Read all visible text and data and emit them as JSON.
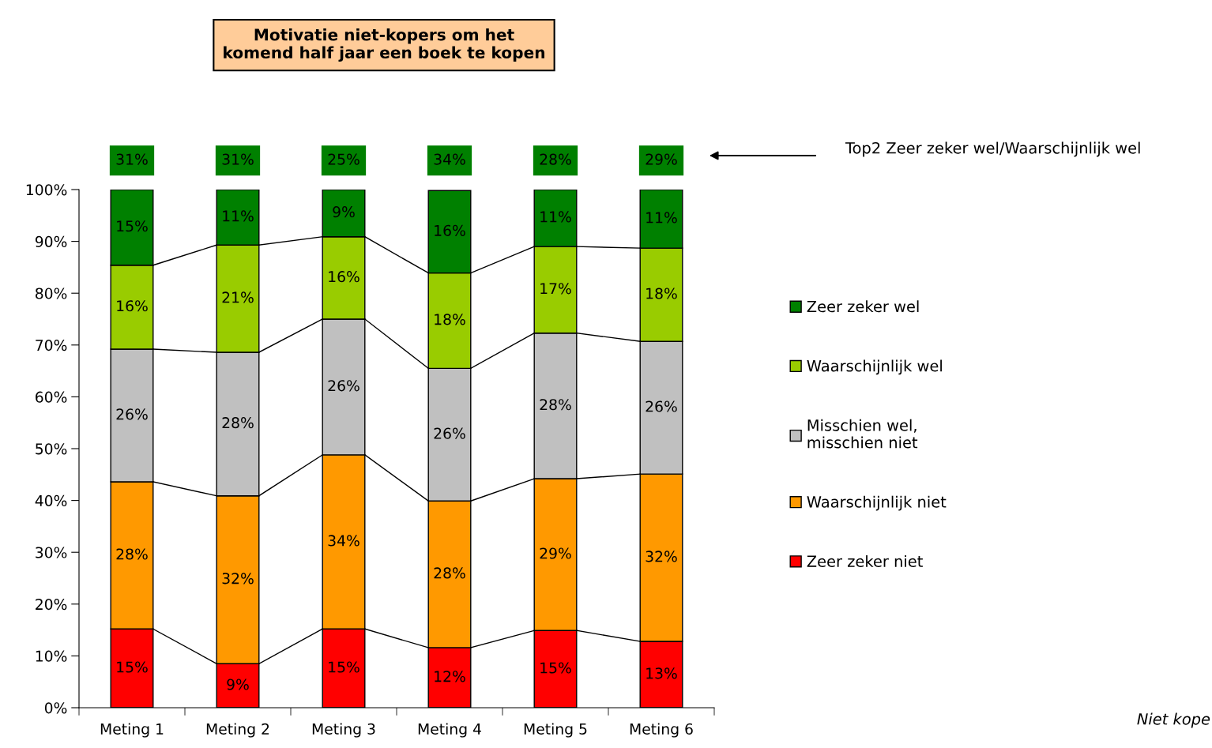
{
  "chart_data": {
    "type": "bar",
    "stacked": true,
    "title": "Motivatie niet-kopers om het\nkomend half jaar een boek te kopen",
    "categories": [
      "Meting 1",
      "Meting 2",
      "Meting 3",
      "Meting 4",
      "Meting 5",
      "Meting 6"
    ],
    "series": [
      {
        "name": "Zeer zeker niet",
        "color": "#ff0000",
        "values": [
          15.2,
          8.5,
          15.2,
          11.6,
          14.9,
          12.8
        ],
        "value_labels": [
          "15%",
          "9%",
          "15%",
          "12%",
          "15%",
          "13%"
        ]
      },
      {
        "name": "Waarschijnlijk niet",
        "color": "#ff9900",
        "values": [
          28.4,
          32.4,
          33.6,
          28.3,
          29.3,
          32.3
        ],
        "value_labels": [
          "28%",
          "32%",
          "34%",
          "28%",
          "29%",
          "32%"
        ]
      },
      {
        "name": "Misschien wel,\nmisschien niet",
        "color": "#c0c0c0",
        "values": [
          25.6,
          27.7,
          26.2,
          25.6,
          28.1,
          25.6
        ],
        "value_labels": [
          "26%",
          "28%",
          "26%",
          "26%",
          "28%",
          "26%"
        ]
      },
      {
        "name": "Waarschijnlijk wel",
        "color": "#99cc00",
        "values": [
          16.2,
          20.7,
          15.9,
          18.4,
          16.7,
          18.0
        ],
        "value_labels": [
          "16%",
          "21%",
          "16%",
          "18%",
          "17%",
          "18%"
        ]
      },
      {
        "name": "Zeer zeker wel",
        "color": "#008000",
        "values": [
          14.6,
          10.7,
          9.1,
          15.9,
          11.0,
          11.3
        ],
        "value_labels": [
          "15%",
          "11%",
          "9%",
          "16%",
          "11%",
          "11%"
        ]
      }
    ],
    "ylim": [
      0,
      100
    ],
    "yticks": [
      {
        "value": 0,
        "label": "0%"
      },
      {
        "value": 10,
        "label": "10%"
      },
      {
        "value": 20,
        "label": "20%"
      },
      {
        "value": 30,
        "label": "30%"
      },
      {
        "value": 40,
        "label": "40%"
      },
      {
        "value": 50,
        "label": "50%"
      },
      {
        "value": 60,
        "label": "60%"
      },
      {
        "value": 70,
        "label": "70%"
      },
      {
        "value": 80,
        "label": "80%"
      },
      {
        "value": 90,
        "label": "90%"
      },
      {
        "value": 100,
        "label": "100%"
      }
    ],
    "annotations": [
      "31%",
      "31%",
      "25%",
      "34%",
      "28%",
      "29%",
      "Top2 Zeer zeker wel/Waarschijnlijk wel",
      "Niet kope"
    ],
    "grid": false,
    "legend": "right"
  }
}
